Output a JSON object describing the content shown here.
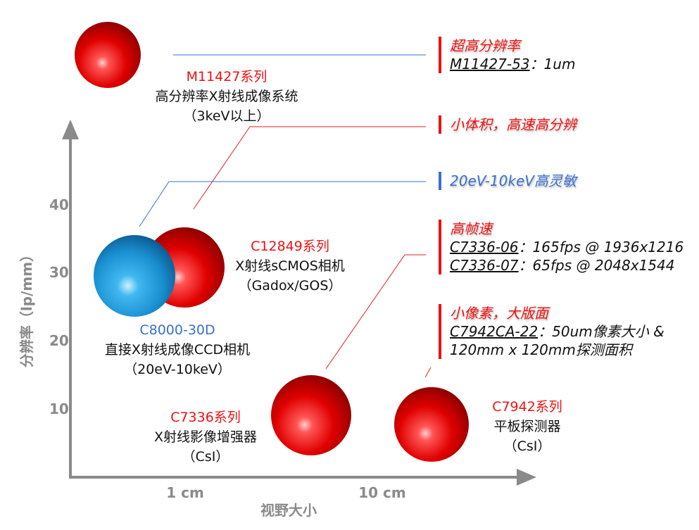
{
  "axes": {
    "y_title": "分辨率（lp/mm）",
    "x_title": "视野大小",
    "y_ticks": [
      "40",
      "30",
      "20",
      "10"
    ],
    "x_ticks": [
      "1 cm",
      "10 cm"
    ]
  },
  "colors": {
    "red": "#f01010",
    "blue": "#3a6fd0",
    "axis": "#8a8a8a"
  },
  "products": [
    {
      "name": "M11427系列",
      "desc": "高分辨率X射线成像系统",
      "sub": "（3keV以上）",
      "color": "red"
    },
    {
      "name": "C12849系列",
      "desc": "X射线sCMOS相机",
      "sub": "（Gadox/GOS）",
      "color": "red"
    },
    {
      "name": "C8000-30D",
      "desc": "直接X射线成像CCD相机",
      "sub": "（20eV-10keV）",
      "color": "blue"
    },
    {
      "name": "C7336系列",
      "desc": "X射线影像增强器",
      "sub": "（CsI）",
      "color": "red"
    },
    {
      "name": "C7942系列",
      "desc": "平板探测器",
      "sub": "（CsI）",
      "color": "red"
    }
  ],
  "notes": [
    {
      "heading": "超高分辨率",
      "lines": [
        {
          "model": "M11427-53",
          "text": "：1um"
        }
      ]
    },
    {
      "heading": "小体积，高速高分辨",
      "lines": []
    },
    {
      "heading": "20eV-10keV高灵敏",
      "lines": []
    },
    {
      "heading": "高帧速",
      "lines": [
        {
          "model": "C7336-06",
          "text": "：165fps @ 1936x1216"
        },
        {
          "model": "C7336-07",
          "text": "：65fps @ 2048x1544"
        }
      ]
    },
    {
      "heading": "小像素，大版面",
      "lines": [
        {
          "model": "C7942CA-22",
          "text": "：50um像素大小 &"
        },
        {
          "model": "",
          "text": "120mm x 120mm探测面积"
        }
      ]
    }
  ]
}
